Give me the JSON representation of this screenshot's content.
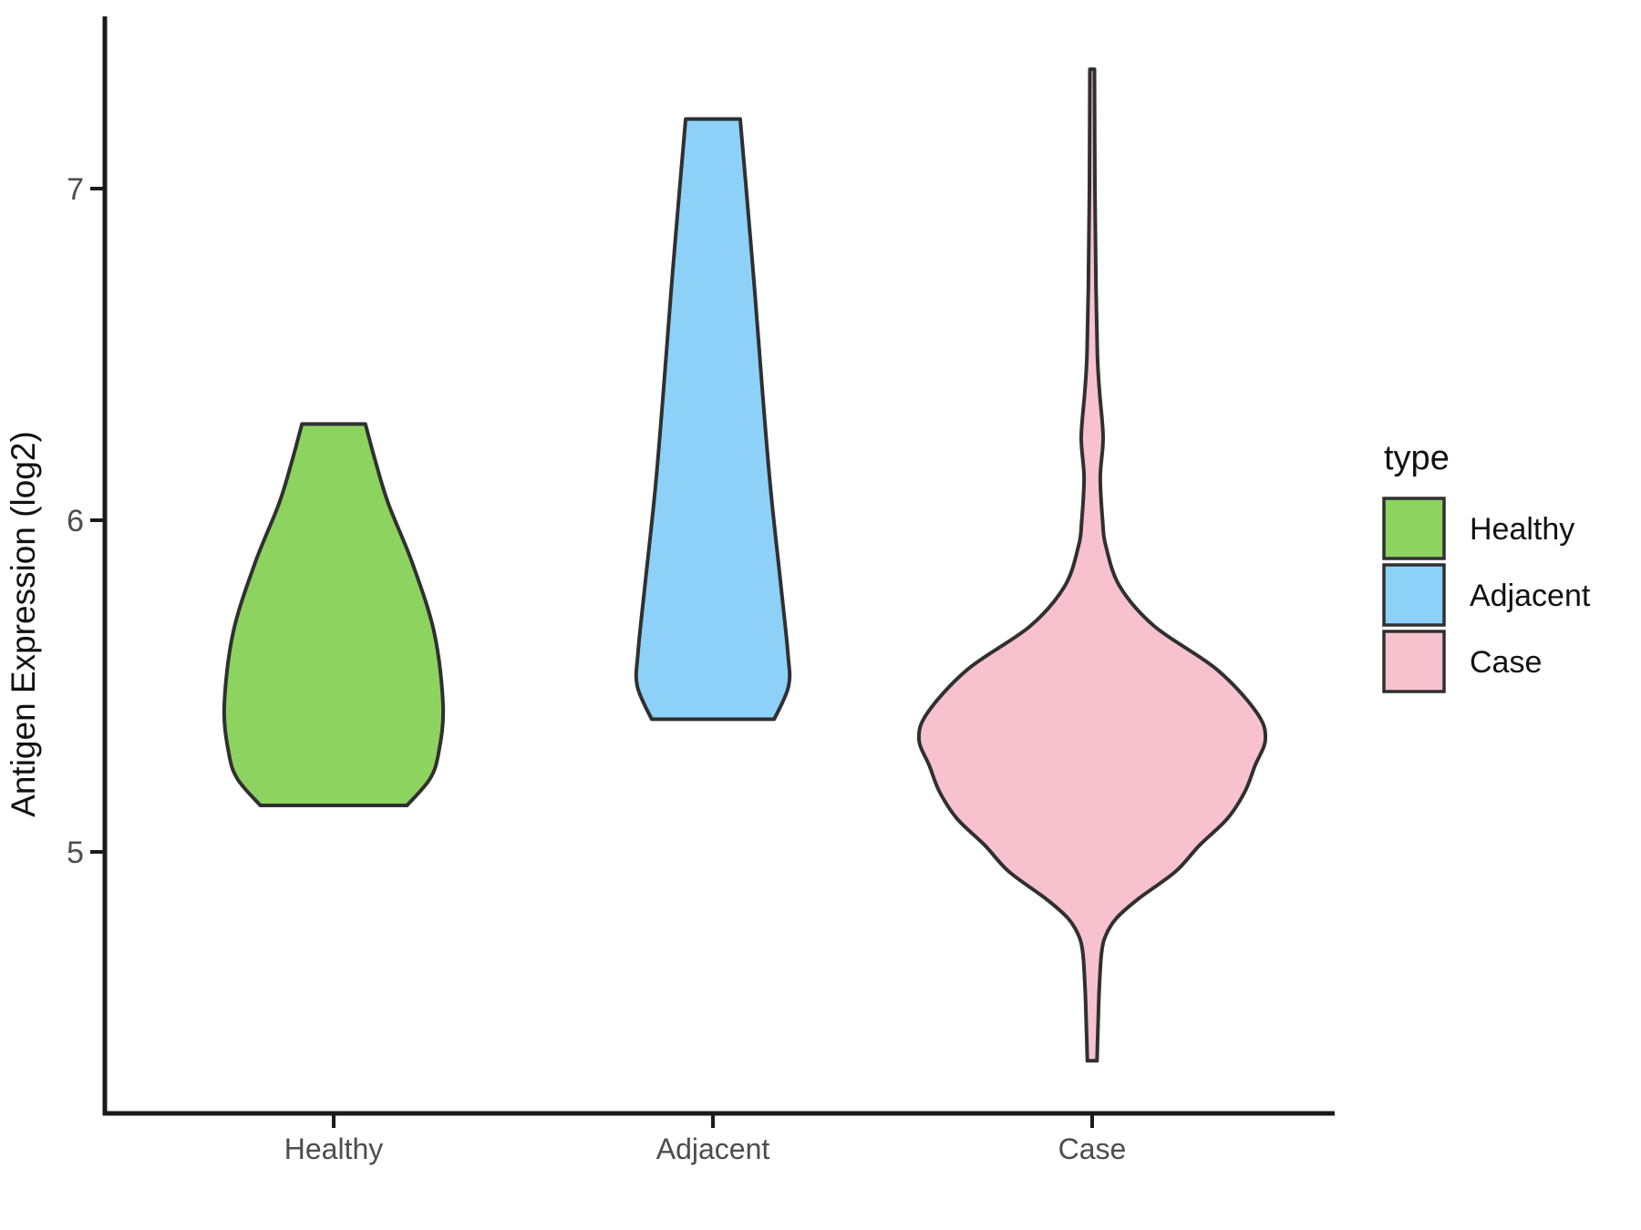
{
  "figure": {
    "background": "#ffffff",
    "stroke_color": "#303030",
    "axis_color": "#1a1a1a",
    "tick_label_color": "#4d4d4d"
  },
  "y_axis": {
    "title": "Antigen Expression (log2)",
    "ticks": [
      "5",
      "6",
      "7"
    ],
    "tick_values": [
      5,
      6,
      7
    ]
  },
  "x_axis": {
    "categories": [
      "Healthy",
      "Adjacent",
      "Case"
    ]
  },
  "legend": {
    "title": "type",
    "items": [
      {
        "label": "Healthy",
        "color": "#8CD35F"
      },
      {
        "label": "Adjacent",
        "color": "#8DD1F9"
      },
      {
        "label": "Case",
        "color": "#F7C2CE"
      }
    ]
  },
  "chart_data": {
    "type": "violin",
    "title": "",
    "xlabel": "",
    "ylabel": "Antigen Expression (log2)",
    "ylim": [
      4.2,
      7.55
    ],
    "yticks": [
      5,
      6,
      7
    ],
    "categories": [
      "Healthy",
      "Adjacent",
      "Case"
    ],
    "legend_title": "type",
    "legend_position": "right",
    "grid": false,
    "series": [
      {
        "name": "Healthy",
        "color": "#8CD35F",
        "value_range": [
          5.14,
          6.29
        ],
        "peak_density_at": 5.44,
        "profile": [
          [
            6.29,
            0.29
          ],
          [
            6.18,
            0.38
          ],
          [
            6.05,
            0.5
          ],
          [
            5.87,
            0.72
          ],
          [
            5.66,
            0.92
          ],
          [
            5.44,
            1.0
          ],
          [
            5.3,
            0.96
          ],
          [
            5.22,
            0.88
          ],
          [
            5.14,
            0.67
          ]
        ]
      },
      {
        "name": "Adjacent",
        "color": "#8DD1F9",
        "value_range": [
          5.4,
          7.21
        ],
        "peak_density_at": 5.5,
        "profile": [
          [
            7.21,
            0.36
          ],
          [
            7.0,
            0.44
          ],
          [
            6.7,
            0.55
          ],
          [
            6.4,
            0.65
          ],
          [
            6.1,
            0.76
          ],
          [
            5.8,
            0.9
          ],
          [
            5.6,
            0.99
          ],
          [
            5.5,
            1.0
          ],
          [
            5.4,
            0.81
          ]
        ]
      },
      {
        "name": "Case",
        "color": "#F7C2CE",
        "value_range": [
          4.37,
          7.36
        ],
        "peak_density_at": 5.34,
        "profile": [
          [
            7.36,
            0.013
          ],
          [
            7.0,
            0.016
          ],
          [
            6.7,
            0.022
          ],
          [
            6.5,
            0.03
          ],
          [
            6.39,
            0.042
          ],
          [
            6.25,
            0.063
          ],
          [
            6.13,
            0.047
          ],
          [
            6.0,
            0.06
          ],
          [
            5.92,
            0.08
          ],
          [
            5.8,
            0.16
          ],
          [
            5.68,
            0.36
          ],
          [
            5.55,
            0.72
          ],
          [
            5.42,
            0.95
          ],
          [
            5.34,
            1.0
          ],
          [
            5.26,
            0.94
          ],
          [
            5.18,
            0.88
          ],
          [
            5.1,
            0.78
          ],
          [
            5.02,
            0.62
          ],
          [
            4.94,
            0.48
          ],
          [
            4.86,
            0.27
          ],
          [
            4.8,
            0.14
          ],
          [
            4.75,
            0.08
          ],
          [
            4.7,
            0.055
          ],
          [
            4.6,
            0.042
          ],
          [
            4.5,
            0.035
          ],
          [
            4.37,
            0.028
          ]
        ]
      }
    ]
  }
}
